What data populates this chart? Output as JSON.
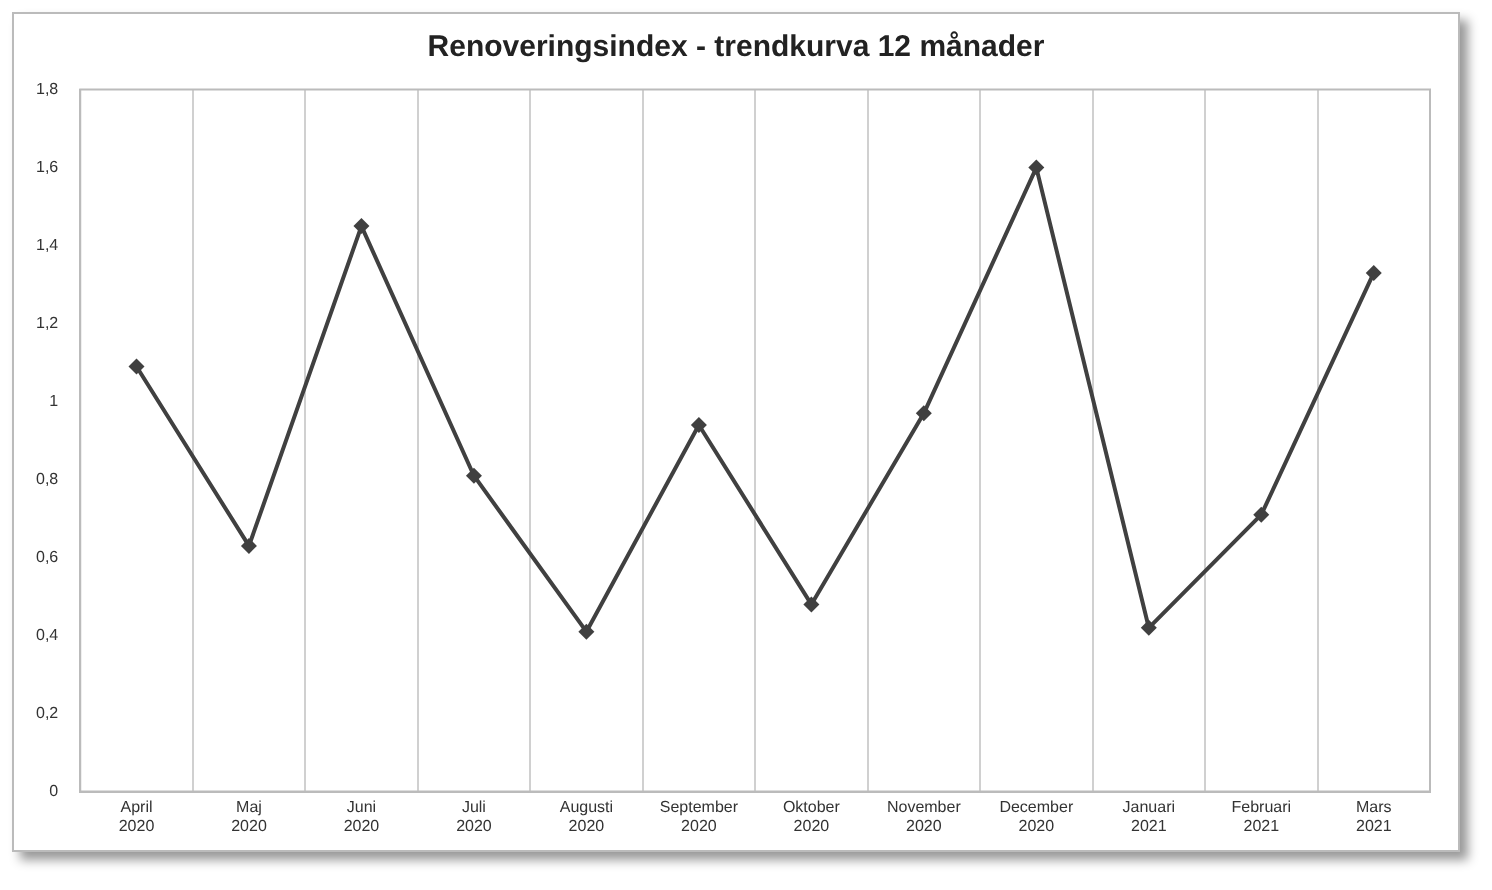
{
  "chart_data": {
    "type": "line",
    "title": "Renoveringsindex - trendkurva 12 månader",
    "categories": [
      "April\n2020",
      "Maj\n2020",
      "Juni\n2020",
      "Juli\n2020",
      "Augusti\n2020",
      "September\n2020",
      "Oktober\n2020",
      "November\n2020",
      "December\n2020",
      "Januari\n2021",
      "Februari\n2021",
      "Mars\n2021"
    ],
    "series": [
      {
        "color": "#404040",
        "values": [
          1.09,
          0.63,
          1.45,
          0.81,
          0.41,
          0.94,
          0.48,
          0.97,
          1.6,
          0.42,
          0.71,
          1.33
        ]
      }
    ],
    "ylim": [
      0,
      1.8
    ],
    "yticks": [
      0,
      {
        "value": 0.2,
        "label": "0,2"
      },
      {
        "value": 0.4,
        "label": "0,4"
      },
      {
        "value": 0.6,
        "label": "0,6"
      },
      {
        "value": 0.8,
        "label": "0,8"
      },
      1,
      {
        "value": 1.2,
        "label": "1,2"
      },
      {
        "value": 1.4,
        "label": "1,4"
      },
      {
        "value": 1.6,
        "label": "1,6"
      },
      {
        "value": 1.8,
        "label": "1,8"
      }
    ],
    "grid": "x",
    "marker": "diamond",
    "line_style": "solid",
    "legend": false
  }
}
